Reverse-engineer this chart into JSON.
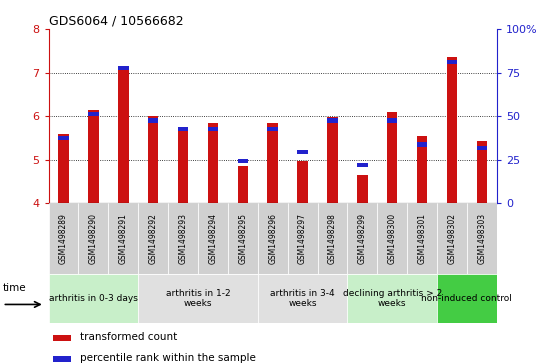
{
  "title": "GDS6064 / 10566682",
  "samples": [
    "GSM1498289",
    "GSM1498290",
    "GSM1498291",
    "GSM1498292",
    "GSM1498293",
    "GSM1498294",
    "GSM1498295",
    "GSM1498296",
    "GSM1498297",
    "GSM1498298",
    "GSM1498299",
    "GSM1498300",
    "GSM1498301",
    "GSM1498302",
    "GSM1498303"
  ],
  "red_values": [
    5.6,
    6.15,
    7.15,
    6.0,
    5.75,
    5.85,
    4.85,
    5.85,
    4.98,
    5.97,
    4.65,
    6.1,
    5.55,
    7.35,
    5.42
  ],
  "blue_values": [
    5.45,
    6.0,
    7.05,
    5.85,
    5.65,
    5.65,
    4.92,
    5.65,
    5.13,
    5.85,
    4.83,
    5.85,
    5.3,
    7.2,
    5.22
  ],
  "ymin": 4,
  "ymax": 8,
  "yticks_left": [
    4,
    5,
    6,
    7,
    8
  ],
  "right_ytick_pcts": [
    0,
    25,
    50,
    75,
    100
  ],
  "right_yticklabels": [
    "0",
    "25",
    "50",
    "75",
    "100%"
  ],
  "groups": [
    {
      "label": "arthritis in 0-3 days",
      "indices": [
        0,
        1,
        2
      ],
      "color": "#c8efc9"
    },
    {
      "label": "arthritis in 1-2\nweeks",
      "indices": [
        3,
        4,
        5,
        6
      ],
      "color": "#e0e0e0"
    },
    {
      "label": "arthritis in 3-4\nweeks",
      "indices": [
        7,
        8,
        9
      ],
      "color": "#e0e0e0"
    },
    {
      "label": "declining arthritis > 2\nweeks",
      "indices": [
        10,
        11,
        12
      ],
      "color": "#c8efc9"
    },
    {
      "label": "non-induced control",
      "indices": [
        13,
        14
      ],
      "color": "#44cc44"
    }
  ],
  "red_color": "#cc1111",
  "blue_color": "#2222cc",
  "bar_width": 0.35,
  "legend_red": "transformed count",
  "legend_blue": "percentile rank within the sample",
  "cell_bg": "#d0d0d0",
  "bg_color": "#ffffff"
}
